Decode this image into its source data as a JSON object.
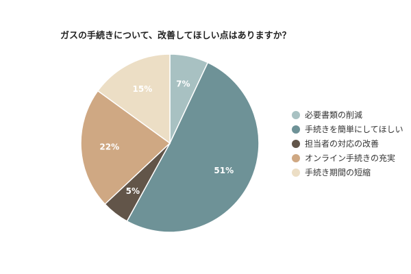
{
  "chart_data": {
    "type": "pie",
    "title": "ガスの手続きについて、改善してほしい点はありますか？",
    "slices": [
      {
        "label": "必要書類の削減",
        "value": 7,
        "display": "7%",
        "color": "#a8c1c2",
        "text_color": "#ffffff"
      },
      {
        "label": "手続きを簡単にしてほしい",
        "value": 51,
        "display": "51%",
        "color": "#6e9297",
        "text_color": "#ffffff"
      },
      {
        "label": "担当者の対応の改善",
        "value": 5,
        "display": "5%",
        "color": "#625549",
        "text_color": "#ffffff"
      },
      {
        "label": "オンライン手続きの充実",
        "value": 22,
        "display": "22%",
        "color": "#cfa883",
        "text_color": "#ffffff"
      },
      {
        "label": "手続き期間の短縮",
        "value": 15,
        "display": "15%",
        "color": "#ecdec5",
        "text_color": "#ffffff"
      }
    ],
    "legend_position": "right",
    "start_angle_deg": 0,
    "direction": "clockwise"
  }
}
